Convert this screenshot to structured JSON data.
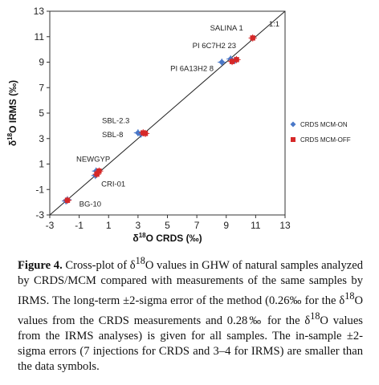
{
  "chart_data": {
    "type": "scatter",
    "title": "",
    "xlabel_pre": "δ",
    "xlabel_sup": "18",
    "xlabel_post": "O CRDS (‰)",
    "ylabel_pre": "δ",
    "ylabel_sup": "18",
    "ylabel_post": "O IRMS (‰)",
    "xlim": [
      -3,
      13
    ],
    "ylim": [
      -3,
      13
    ],
    "xticks": [
      "-3",
      "-1",
      "1",
      "3",
      "5",
      "7",
      "9",
      "11",
      "13"
    ],
    "yticks": [
      "-3",
      "-1",
      "1",
      "3",
      "5",
      "7",
      "9",
      "11",
      "13"
    ],
    "xtick_values": [
      -3,
      -1,
      1,
      3,
      5,
      7,
      9,
      11,
      13
    ],
    "ytick_values": [
      -3,
      -1,
      1,
      3,
      5,
      7,
      9,
      11,
      13
    ],
    "grid": false,
    "legend_position": "right",
    "one_to_one_label": "1:1",
    "series": [
      {
        "name": "CRDS MCM-ON",
        "color": "#4a78c8",
        "marker": "diamond",
        "points": [
          {
            "x": -1.9,
            "y": -1.9
          },
          {
            "x": -1.8,
            "y": -1.8
          },
          {
            "x": 0.1,
            "y": 0.1
          },
          {
            "x": 0.15,
            "y": 0.45
          },
          {
            "x": 3.0,
            "y": 3.45
          },
          {
            "x": 3.2,
            "y": 3.35
          },
          {
            "x": 8.7,
            "y": 9.0
          },
          {
            "x": 9.3,
            "y": 9.25
          },
          {
            "x": 9.6,
            "y": 9.15
          }
        ]
      },
      {
        "name": "CRDS MCM-OFF",
        "color": "#d62828",
        "marker": "square",
        "points": [
          {
            "x": -1.8,
            "y": -1.85
          },
          {
            "x": 0.2,
            "y": 0.2
          },
          {
            "x": 0.35,
            "y": 0.45
          },
          {
            "x": 3.35,
            "y": 3.45
          },
          {
            "x": 3.5,
            "y": 3.4
          },
          {
            "x": 9.4,
            "y": 9.05
          },
          {
            "x": 9.7,
            "y": 9.2
          },
          {
            "x": 10.8,
            "y": 10.9
          }
        ]
      }
    ],
    "annotations": [
      {
        "text": "SALINA 1",
        "x": 7.9,
        "y": 11.5
      },
      {
        "text": "PI 6C7H2 23",
        "x": 6.7,
        "y": 10.1
      },
      {
        "text": "PI 6A13H2 8",
        "x": 5.2,
        "y": 8.3
      },
      {
        "text": "SBL-2.3",
        "x": 0.55,
        "y": 4.2
      },
      {
        "text": "SBL-8",
        "x": 0.55,
        "y": 3.1
      },
      {
        "text": "NEWGYP",
        "x": -1.2,
        "y": 1.2
      },
      {
        "text": "CRI-01",
        "x": 0.5,
        "y": -0.75
      },
      {
        "text": "BG-10",
        "x": -1.0,
        "y": -2.35
      }
    ]
  },
  "caption": {
    "figure_label": "Figure 4.",
    "p1": " Cross-plot of δ",
    "s1": "18",
    "p2": "O values in GHW of natural samples analyzed by CRDS/MCM compared with measurements of the same samples by IRMS. The long-term ±2-sigma error of the method (0.26‰ for the δ",
    "s2": "18",
    "p3": "O values from the CRDS measurements and 0.28‰ for the δ",
    "s3": "18",
    "p4": "O values from the IRMS analyses) is given for all samples. The in-sample ±2-sigma errors (7 injections for CRDS and 3–4 for IRMS) are smaller than the data symbols."
  }
}
